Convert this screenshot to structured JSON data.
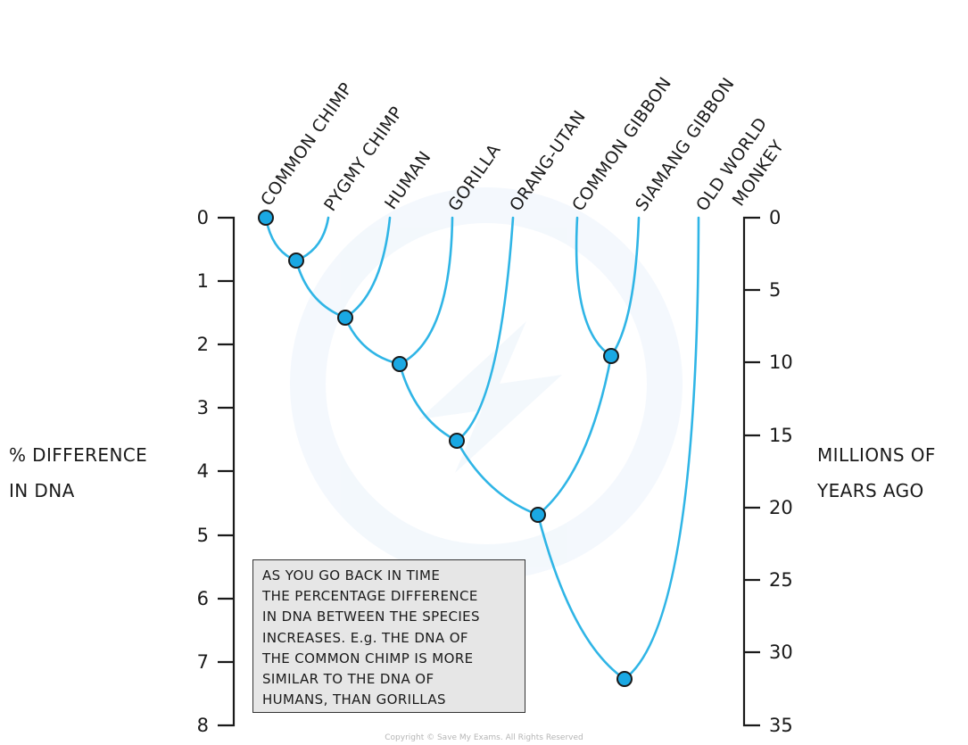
{
  "species": [
    "COMMON CHIMP",
    "PYGMY CHIMP",
    "HUMAN",
    "GORILLA",
    "ORANG-UTAN",
    "COMMON GIBBON",
    "SIAMANG GIBBON",
    "OLD WORLD MONKEY"
  ],
  "left_axis": {
    "title_lines": [
      "% DIFFERENCE",
      "IN DNA"
    ],
    "ticks": [
      "0",
      "1",
      "2",
      "3",
      "4",
      "5",
      "6",
      "7",
      "8"
    ],
    "range": [
      0,
      8
    ]
  },
  "right_axis": {
    "title_lines": [
      "MILLIONS OF",
      "YEARS AGO"
    ],
    "ticks": [
      "0",
      "5",
      "10",
      "15",
      "20",
      "25",
      "30",
      "35"
    ],
    "range": [
      0,
      35
    ]
  },
  "divergence_nodes_percent_dna": [
    0,
    0.7,
    1.6,
    2.3,
    3.5,
    2.2,
    4.7,
    7.3
  ],
  "note_lines": [
    "AS YOU GO BACK IN TIME",
    "THE PERCENTAGE DIFFERENCE",
    "IN DNA BETWEEN THE SPECIES",
    "INCREASES. E.g. THE DNA OF",
    "THE COMMON CHIMP IS MORE",
    "SIMILAR TO THE DNA OF",
    "HUMANS, THAN GORILLAS"
  ],
  "copyright": "Copyright © Save My Exams. All Rights Reserved",
  "colors": {
    "branch": "#2fb5e6",
    "node_fill": "#1aa8e3",
    "node_stroke": "#1a1a1a",
    "axis": "#1a1a1a",
    "note_bg": "#e6e6e6"
  }
}
